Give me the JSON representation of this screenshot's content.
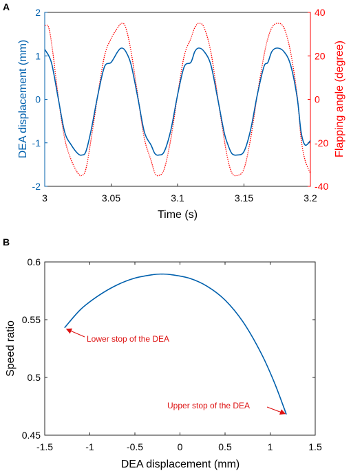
{
  "colors": {
    "blue": "#0060ad",
    "red": "#ff0000",
    "axis": "#262626",
    "annot": "#dd1111"
  },
  "chart_data": [
    {
      "panel_label": "A",
      "type": "line",
      "xlabel": "Time (s)",
      "ylabel_left": "DEA displacement (mm)",
      "ylabel_right": "Flapping angle (degree)",
      "xlim": [
        3,
        3.2
      ],
      "ylim_left": [
        -2,
        2
      ],
      "ylim_right": [
        -40,
        40
      ],
      "x_ticks": [
        "3",
        "3.05",
        "3.1",
        "3.15",
        "3.2"
      ],
      "y_ticks_left": [
        "-2",
        "-1",
        "0",
        "1",
        "2"
      ],
      "y_ticks_right": [
        "-40",
        "-20",
        "0",
        "20",
        "40"
      ],
      "period_s": 0.0555,
      "series": [
        {
          "axis": "left",
          "style": "solid",
          "color": "blue",
          "x": [
            3.0,
            3.005,
            3.01,
            3.015,
            3.02,
            3.025,
            3.028,
            3.031,
            3.035,
            3.04,
            3.045,
            3.05,
            3.055,
            3.058,
            3.061,
            3.065,
            3.07,
            3.075,
            3.08,
            3.083,
            3.086,
            3.09,
            3.095,
            3.1,
            3.105,
            3.11,
            3.113,
            3.116,
            3.12,
            3.125,
            3.13,
            3.135,
            3.138,
            3.141,
            3.145,
            3.15,
            3.155,
            3.16,
            3.165,
            3.168,
            3.171,
            3.175,
            3.18,
            3.185,
            3.19,
            3.193,
            3.196,
            3.2
          ],
          "values": [
            1.15,
            0.85,
            0.05,
            -0.75,
            -1.05,
            -1.25,
            -1.28,
            -1.2,
            -0.7,
            0.1,
            0.75,
            0.85,
            1.1,
            1.18,
            1.1,
            0.8,
            0.05,
            -0.75,
            -1.05,
            -1.25,
            -1.28,
            -1.2,
            -0.7,
            0.1,
            0.75,
            0.85,
            1.1,
            1.18,
            1.1,
            0.8,
            0.05,
            -0.75,
            -1.05,
            -1.25,
            -1.28,
            -1.2,
            -0.7,
            0.1,
            0.75,
            0.85,
            1.1,
            1.18,
            1.1,
            0.8,
            0.05,
            -0.75,
            -1.05,
            -0.95
          ]
        },
        {
          "axis": "right",
          "style": "dotted",
          "color": "red",
          "x": [
            3.0,
            3.003,
            3.006,
            3.01,
            3.015,
            3.02,
            3.025,
            3.028,
            3.031,
            3.035,
            3.04,
            3.045,
            3.05,
            3.055,
            3.058,
            3.061,
            3.065,
            3.07,
            3.075,
            3.08,
            3.083,
            3.086,
            3.09,
            3.095,
            3.1,
            3.105,
            3.11,
            3.113,
            3.116,
            3.12,
            3.125,
            3.13,
            3.135,
            3.138,
            3.141,
            3.145,
            3.15,
            3.155,
            3.16,
            3.165,
            3.168,
            3.171,
            3.175,
            3.18,
            3.185,
            3.19,
            3.193,
            3.196,
            3.2
          ],
          "values": [
            34,
            33,
            22,
            2,
            -18,
            -28,
            -34,
            -35,
            -32,
            -18,
            2,
            20,
            28,
            33,
            35,
            33,
            22,
            2,
            -18,
            -28,
            -34,
            -35,
            -32,
            -18,
            2,
            20,
            28,
            33,
            35,
            33,
            22,
            2,
            -18,
            -28,
            -34,
            -35,
            -32,
            -18,
            2,
            20,
            28,
            33,
            35,
            33,
            22,
            2,
            -18,
            -28,
            -34
          ]
        }
      ]
    },
    {
      "panel_label": "B",
      "type": "line",
      "xlabel": "DEA displacement (mm)",
      "ylabel": "Speed ratio",
      "xlim": [
        -1.5,
        1.5
      ],
      "ylim": [
        0.45,
        0.6
      ],
      "x_ticks": [
        "-1.5",
        "-1",
        "-0.5",
        "0",
        "0.5",
        "1",
        "1.5"
      ],
      "y_ticks": [
        "0.45",
        "0.5",
        "0.55",
        "0.6"
      ],
      "series": [
        {
          "color": "blue",
          "x": [
            -1.28,
            -1.1,
            -0.9,
            -0.7,
            -0.5,
            -0.3,
            -0.2,
            -0.1,
            0.1,
            0.3,
            0.5,
            0.7,
            0.9,
            1.05,
            1.18
          ],
          "values": [
            0.543,
            0.559,
            0.571,
            0.58,
            0.586,
            0.589,
            0.5895,
            0.589,
            0.586,
            0.579,
            0.567,
            0.548,
            0.521,
            0.495,
            0.468
          ]
        }
      ],
      "annotations": [
        {
          "text": "Lower stop of the DEA",
          "point": [
            -1.28,
            0.543
          ]
        },
        {
          "text": "Upper stop of the DEA",
          "point": [
            1.18,
            0.468
          ]
        }
      ]
    }
  ]
}
